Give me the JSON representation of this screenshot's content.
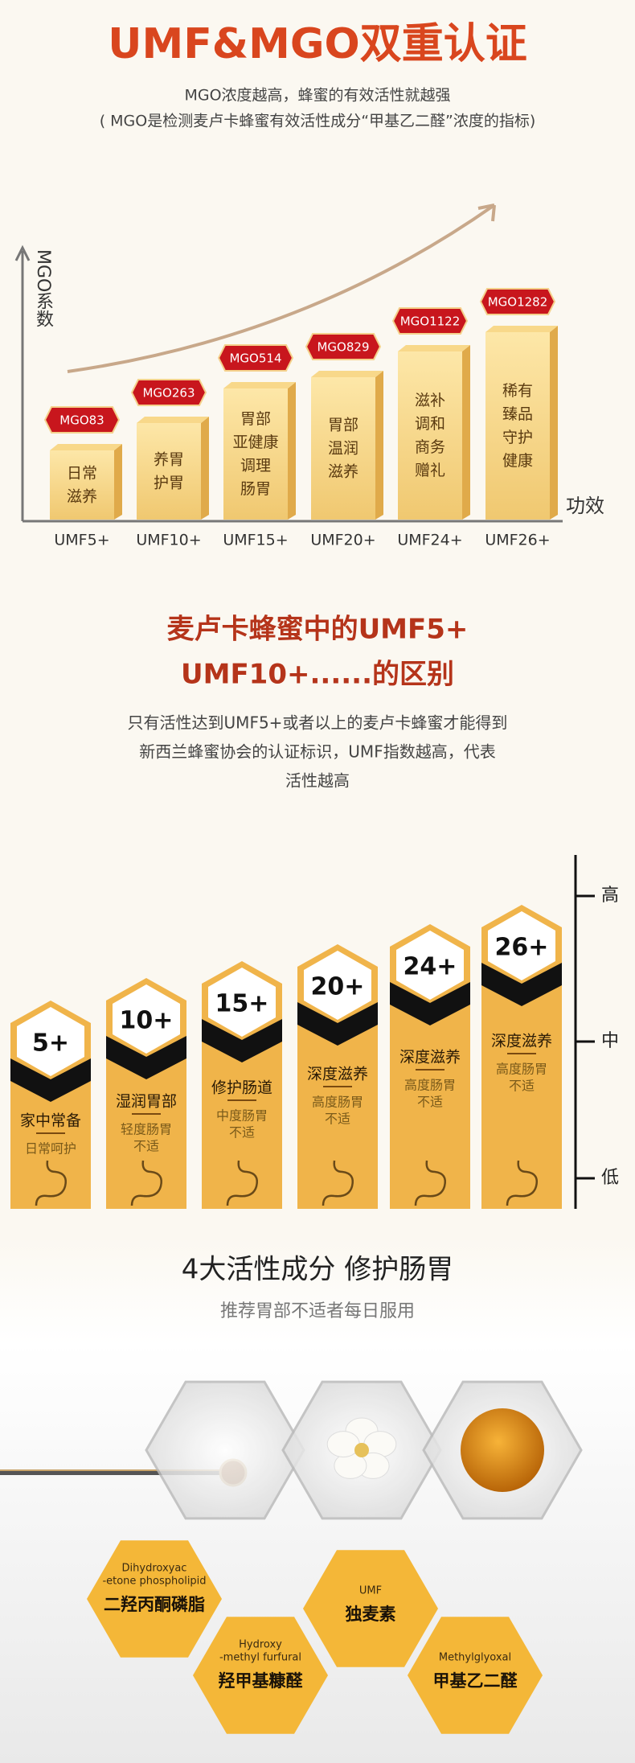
{
  "header": {
    "title": "UMF&MGO双重认证",
    "subtitle_lines": [
      "MGO浓度越高，蜂蜜的有效活性就越强",
      "( MGO是检测麦卢卡蜂蜜有效活性成分“甲基乙二醛”浓度的指标)"
    ]
  },
  "mgo_chart": {
    "y_axis_label": "MGO系数",
    "x_axis_label": "功效",
    "items": [
      {
        "badge": "MGO83",
        "text": [
          "日常",
          "滋养"
        ],
        "grade": "UMF5+"
      },
      {
        "badge": "MGO263",
        "text": [
          "养胃",
          "护胃"
        ],
        "grade": "UMF10+"
      },
      {
        "badge": "MGO514",
        "text": [
          "胃部",
          "亚健康",
          "调理",
          "肠胃"
        ],
        "grade": "UMF15+"
      },
      {
        "badge": "MGO829",
        "text": [
          "胃部",
          "温润",
          "滋养"
        ],
        "grade": "UMF20+"
      },
      {
        "badge": "MGO1122",
        "text": [
          "滋补",
          "调和",
          "商务",
          "赠礼"
        ],
        "grade": "UMF24+"
      },
      {
        "badge": "MGO1282",
        "text": [
          "稀有",
          "臻品",
          "守护",
          "健康"
        ],
        "grade": "UMF26+"
      }
    ]
  },
  "difference": {
    "heading_lines": [
      "麦卢卡蜂蜜中的UMF5+",
      "UMF10+......的区别"
    ],
    "body_lines": [
      "只有活性达到UMF5+或者以上的麦卢卡蜂蜜才能得到",
      "新西兰蜂蜜协会的认证标识，UMF指数越高，代表",
      "活性越高"
    ]
  },
  "activity_levels": {
    "scale": [
      "高",
      "中",
      "低"
    ],
    "columns": [
      {
        "grade": "5+",
        "title": "家中常备",
        "notes": [
          "日常呵护"
        ]
      },
      {
        "grade": "10+",
        "title": "湿润胃部",
        "notes": [
          "轻度肠胃",
          "不适"
        ]
      },
      {
        "grade": "15+",
        "title": "修护肠道",
        "notes": [
          "中度肠胃",
          "不适"
        ]
      },
      {
        "grade": "20+",
        "title": "深度滋养",
        "notes": [
          "高度肠胃",
          "不适"
        ]
      },
      {
        "grade": "24+",
        "title": "深度滋养",
        "notes": [
          "高度肠胃",
          "不适"
        ]
      },
      {
        "grade": "26+",
        "title": "深度滋养",
        "notes": [
          "高度肠胃",
          "不适"
        ]
      }
    ]
  },
  "ingredients": {
    "title": "4大活性成分 修护肠胃",
    "subtitle": "推荐胃部不适者每日服用",
    "items": [
      {
        "en": [
          "Dihydroxyac",
          "-etone phospholipid"
        ],
        "zh": "二羟丙酮磷脂"
      },
      {
        "en": [
          "Hydroxy",
          "-methyl furfural"
        ],
        "zh": "羟甲基糠醛"
      },
      {
        "en": [
          "UMF"
        ],
        "zh": "独麦素"
      },
      {
        "en": [
          "Methylglyoxal"
        ],
        "zh": "甲基乙二醛"
      }
    ]
  }
}
